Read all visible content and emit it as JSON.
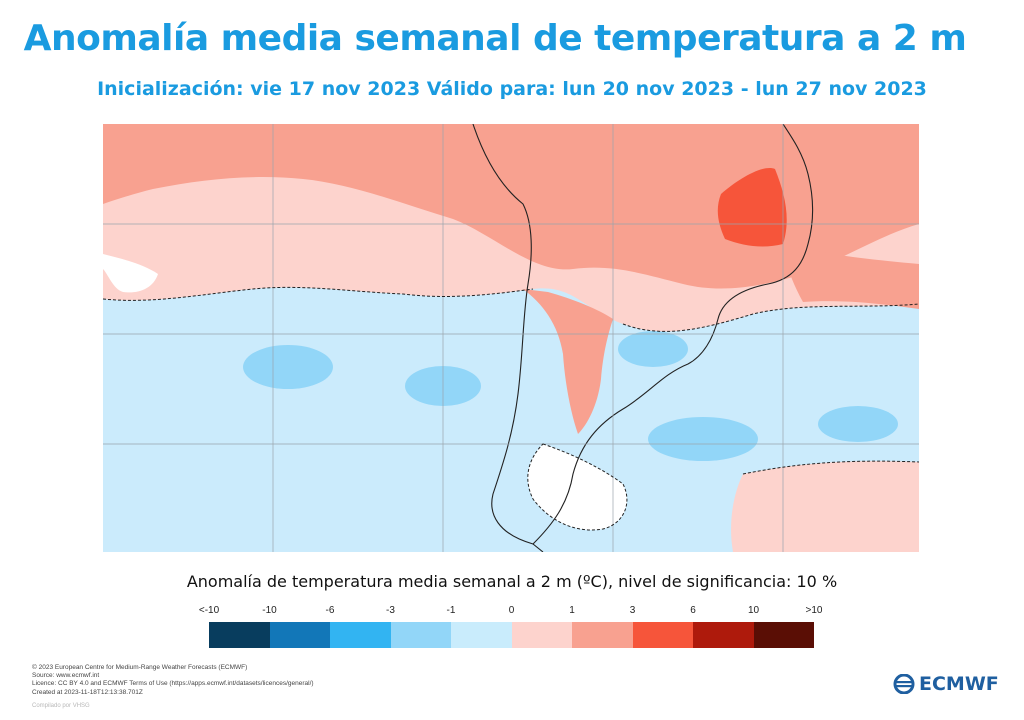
{
  "header": {
    "title": "Anomalía media semanal de temperatura a 2 m",
    "subtitle": "Inicialización: vie 17 nov 2023 Válido para: lun 20 nov 2023 - lun 27 nov 2023"
  },
  "legend": {
    "title": "Anomalía de temperatura media semanal a 2 m (ºC), nivel de significancia: 10 %",
    "labels": [
      "<-10",
      "-10",
      "-6",
      "-3",
      "-1",
      "0",
      "1",
      "3",
      "6",
      "10",
      ">10"
    ],
    "colors": [
      "#083d5e",
      "#1277b8",
      "#32b4f2",
      "#92d6f8",
      "#c9ecfc",
      "#fdd3cd",
      "#f8a190",
      "#f6553a",
      "#ae1a0c",
      "#5a0e05"
    ]
  },
  "map": {
    "background_colors": {
      "sea_cold": "#cbebfc",
      "cold": "#92d6f8",
      "warm_light": "#fdd3cd",
      "warm": "#f8a190",
      "hot": "#f6553a",
      "neutral": "#ffffff"
    }
  },
  "footer": {
    "credits": [
      "© 2023 European Centre for Medium-Range Weather Forecasts (ECMWF)",
      "Source: www.ecmwf.int",
      "Licence: CC BY 4.0 and ECMWF Terms of Use (https://apps.ecmwf.int/datasets/licences/general/)",
      "Created at 2023-11-18T12:13:38.701Z"
    ],
    "compiled": "Compilado por VHSG",
    "logo_text": "ECMWF"
  }
}
